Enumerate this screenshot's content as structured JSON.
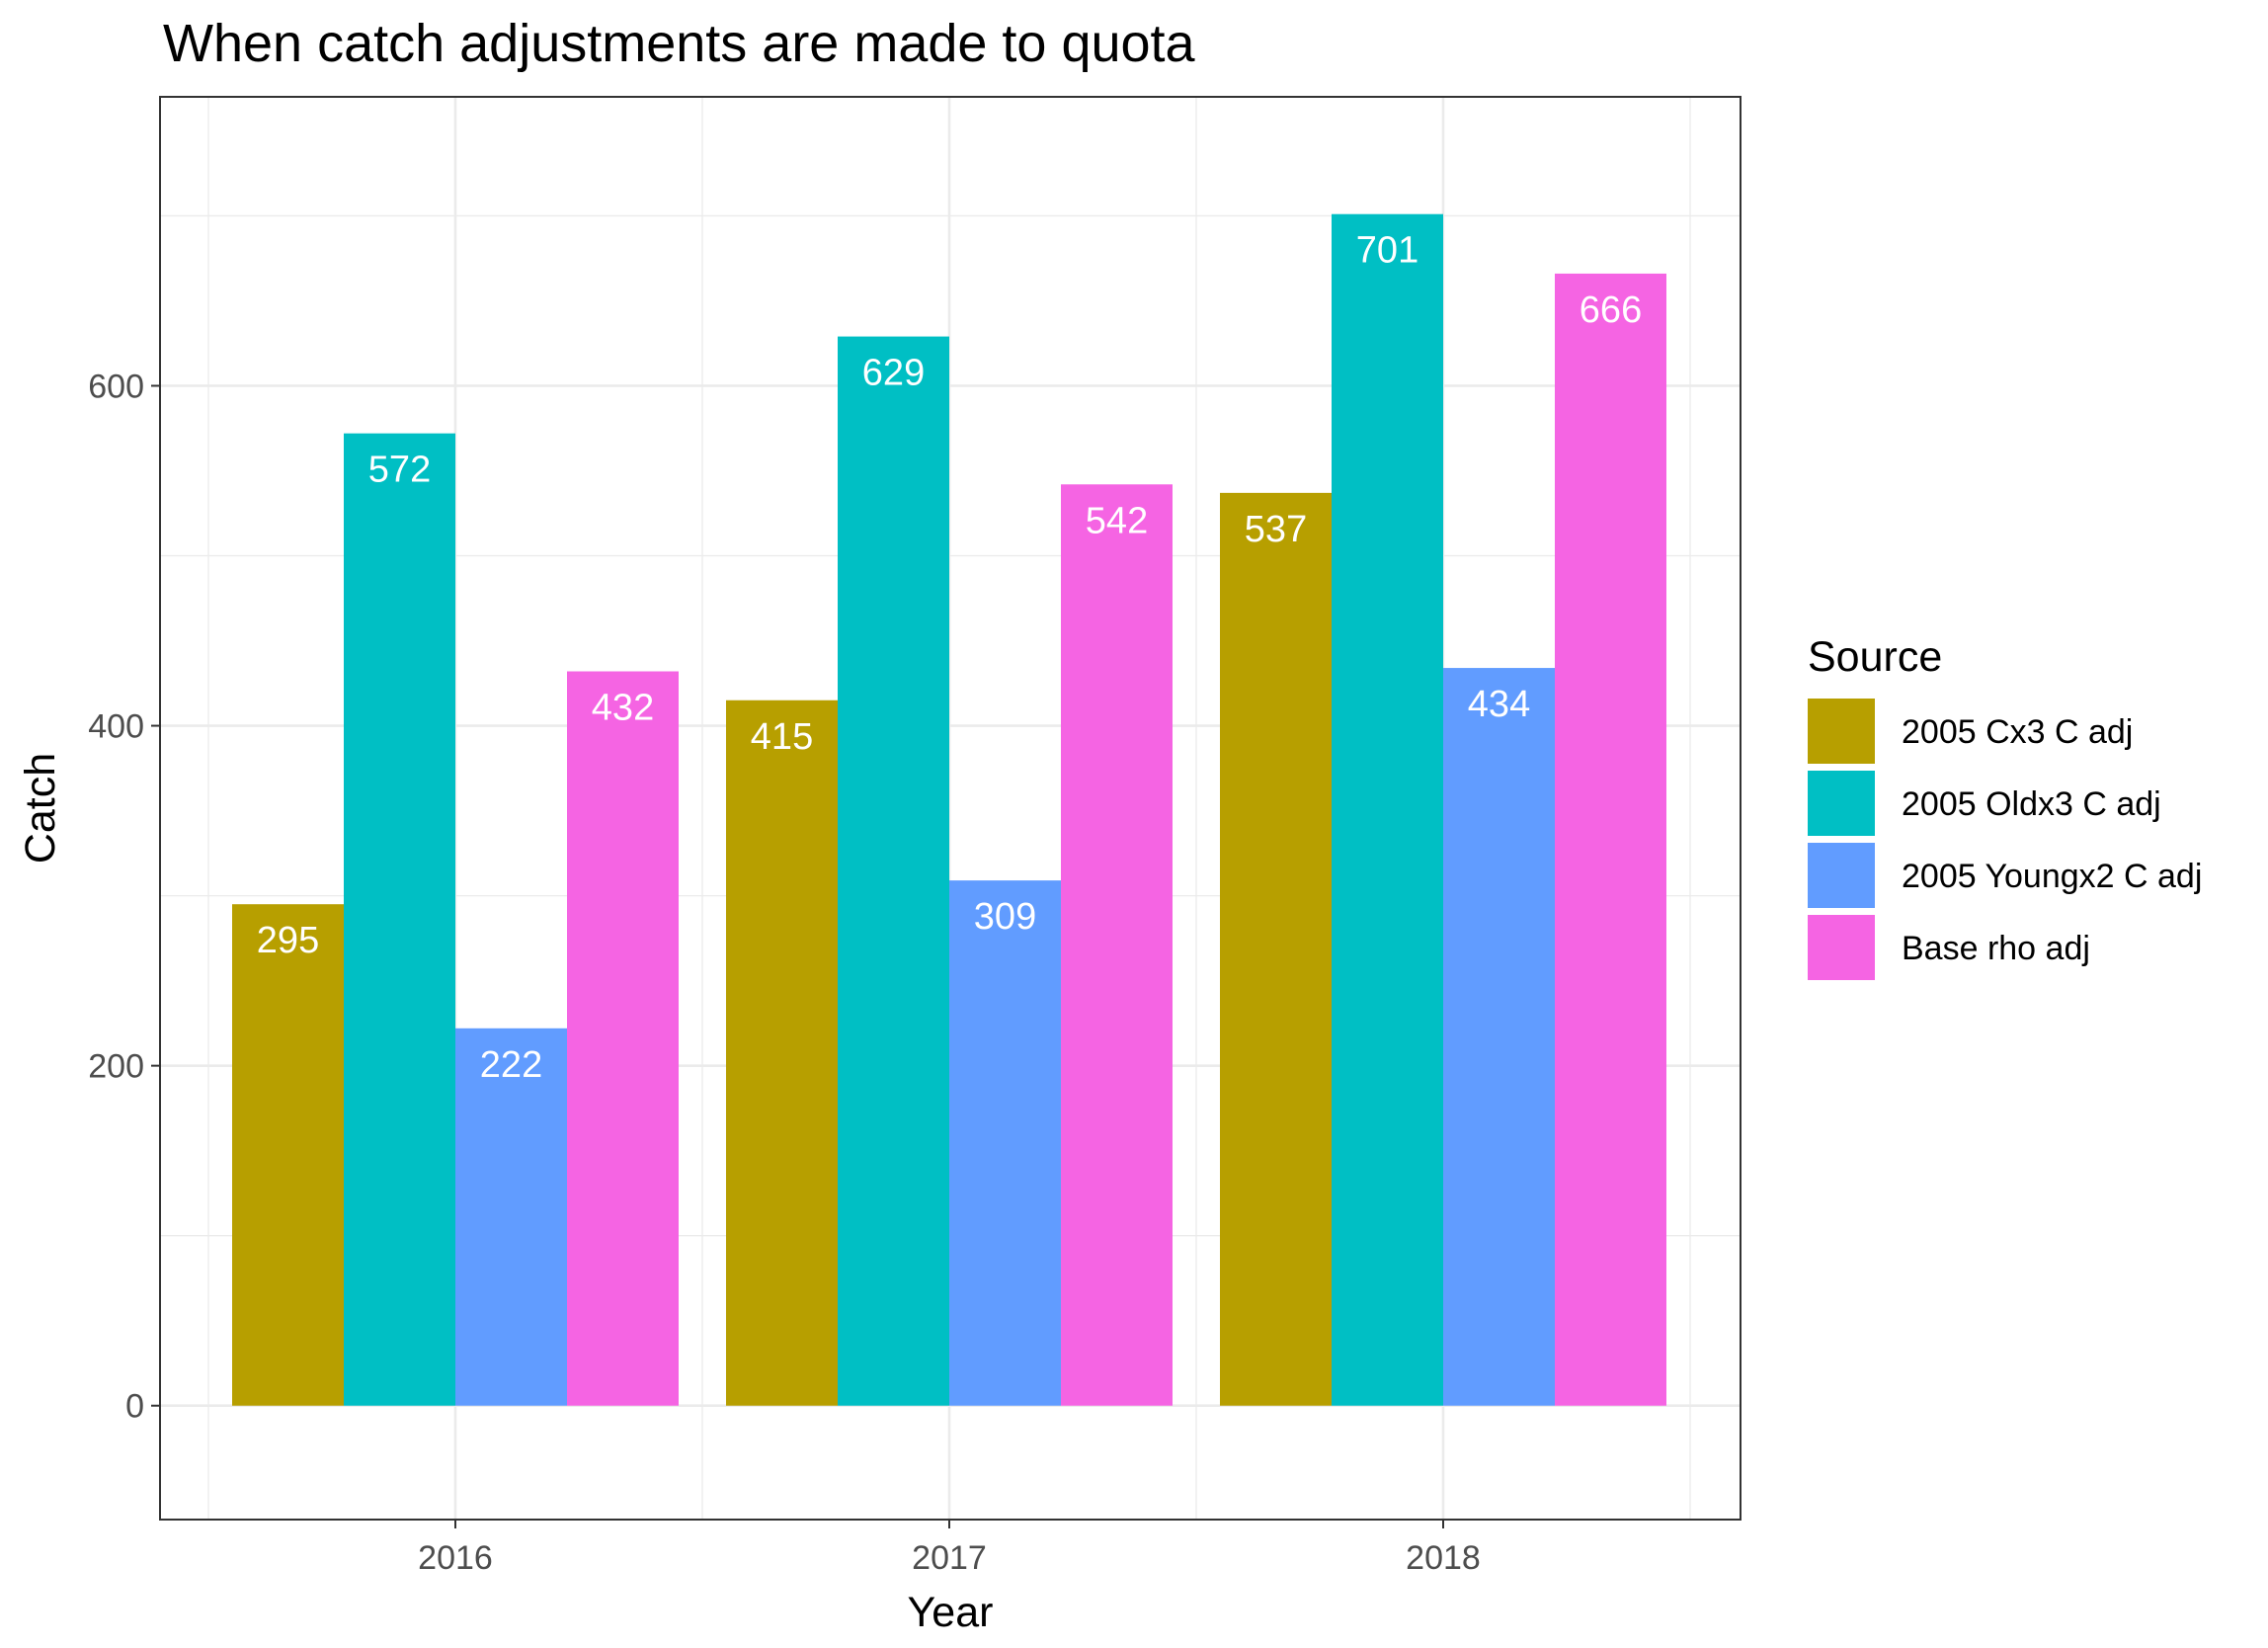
{
  "chart_data": {
    "type": "bar",
    "title": "When catch adjustments are made to quota",
    "xlabel": "Year",
    "ylabel": "Catch",
    "categories": [
      "2016",
      "2017",
      "2018"
    ],
    "ylim": [
      -67,
      770
    ],
    "yticks": [
      0,
      200,
      400,
      600
    ],
    "grid": true,
    "legend": {
      "title": "Source",
      "position": "right"
    },
    "series": [
      {
        "name": "2005 Cx3 C adj",
        "color": "#b79f00",
        "values": [
          295,
          415,
          537
        ]
      },
      {
        "name": "2005 Oldx3 C adj",
        "color": "#00bfc4",
        "values": [
          572,
          629,
          701
        ]
      },
      {
        "name": "2005 Youngx2 C adj",
        "color": "#619cff",
        "values": [
          222,
          309,
          434
        ]
      },
      {
        "name": "Base rho adj",
        "color": "#f564e3",
        "values": [
          432,
          542,
          666
        ]
      }
    ]
  }
}
